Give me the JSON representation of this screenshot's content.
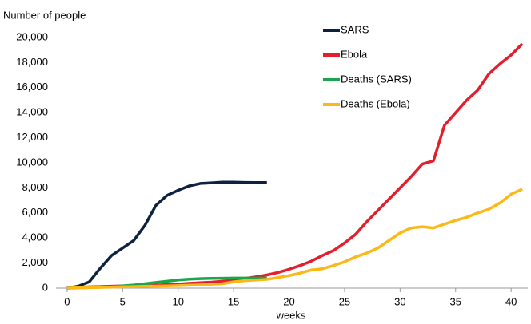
{
  "chart_data": {
    "type": "line",
    "y_label": "Number of people",
    "x_label": "weeks",
    "xlim": [
      -1,
      41.5
    ],
    "ylim": [
      0,
      20000
    ],
    "xticks": [
      0,
      5,
      10,
      15,
      20,
      25,
      30,
      35,
      40
    ],
    "yticks": [
      0,
      {
        "value": 2000,
        "label": "2,000"
      },
      {
        "value": 4000,
        "label": "4,000"
      },
      {
        "value": 6000,
        "label": "6,000"
      },
      {
        "value": 8000,
        "label": "8,000"
      },
      {
        "value": 10000,
        "label": "10,000"
      },
      {
        "value": 12000,
        "label": "12,000"
      },
      {
        "value": 14000,
        "label": "14,000"
      },
      {
        "value": 16000,
        "label": "16,000"
      },
      {
        "value": 18000,
        "label": "18,000"
      },
      {
        "value": 20000,
        "label": "20,000"
      }
    ],
    "legend": "top-right",
    "series": [
      {
        "name": "SARS",
        "color": "#0d2240",
        "x": [
          0,
          1,
          2,
          3,
          4,
          5,
          6,
          7,
          8,
          9,
          10,
          11,
          12,
          13,
          14,
          15,
          16,
          17,
          18
        ],
        "values": [
          0,
          150,
          500,
          1600,
          2600,
          3200,
          3800,
          5000,
          6600,
          7400,
          7800,
          8150,
          8350,
          8400,
          8450,
          8450,
          8430,
          8420,
          8420
        ]
      },
      {
        "name": "Ebola",
        "color": "#e31e2d",
        "x": [
          0,
          1,
          2,
          3,
          4,
          5,
          6,
          7,
          8,
          9,
          10,
          11,
          12,
          13,
          14,
          15,
          16,
          17,
          18,
          19,
          20,
          21,
          22,
          23,
          24,
          25,
          26,
          27,
          28,
          29,
          30,
          31,
          32,
          33,
          34,
          35,
          36,
          37,
          38,
          39,
          40,
          41
        ],
        "values": [
          0,
          50,
          100,
          120,
          150,
          180,
          200,
          220,
          250,
          280,
          320,
          380,
          430,
          480,
          550,
          650,
          780,
          900,
          1050,
          1250,
          1500,
          1800,
          2150,
          2600,
          3000,
          3600,
          4300,
          5300,
          6200,
          7100,
          8000,
          8900,
          9900,
          10150,
          13000,
          14000,
          15000,
          15800,
          17100,
          17900,
          18600,
          19500
        ]
      },
      {
        "name": "Deaths (SARS)",
        "color": "#1aa64a",
        "x": [
          0,
          1,
          2,
          3,
          4,
          5,
          6,
          7,
          8,
          9,
          10,
          11,
          12,
          13,
          14,
          15,
          16,
          17,
          18
        ],
        "values": [
          0,
          20,
          50,
          80,
          120,
          180,
          250,
          350,
          450,
          550,
          650,
          720,
          760,
          780,
          790,
          800,
          800,
          800,
          800
        ]
      },
      {
        "name": "Deaths (Ebola)",
        "color": "#fbb817",
        "x": [
          0,
          1,
          2,
          3,
          4,
          5,
          6,
          7,
          8,
          9,
          10,
          11,
          12,
          13,
          14,
          15,
          16,
          17,
          18,
          19,
          20,
          21,
          22,
          23,
          24,
          25,
          26,
          27,
          28,
          29,
          30,
          31,
          32,
          33,
          34,
          35,
          36,
          37,
          38,
          39,
          40,
          41
        ],
        "values": [
          0,
          20,
          40,
          60,
          80,
          100,
          120,
          140,
          160,
          180,
          200,
          230,
          260,
          300,
          350,
          500,
          600,
          650,
          700,
          850,
          1000,
          1200,
          1450,
          1550,
          1800,
          2100,
          2500,
          2800,
          3200,
          3800,
          4400,
          4800,
          4900,
          4800,
          5100,
          5400,
          5650,
          6000,
          6300,
          6800,
          7500,
          7900
        ]
      }
    ]
  }
}
